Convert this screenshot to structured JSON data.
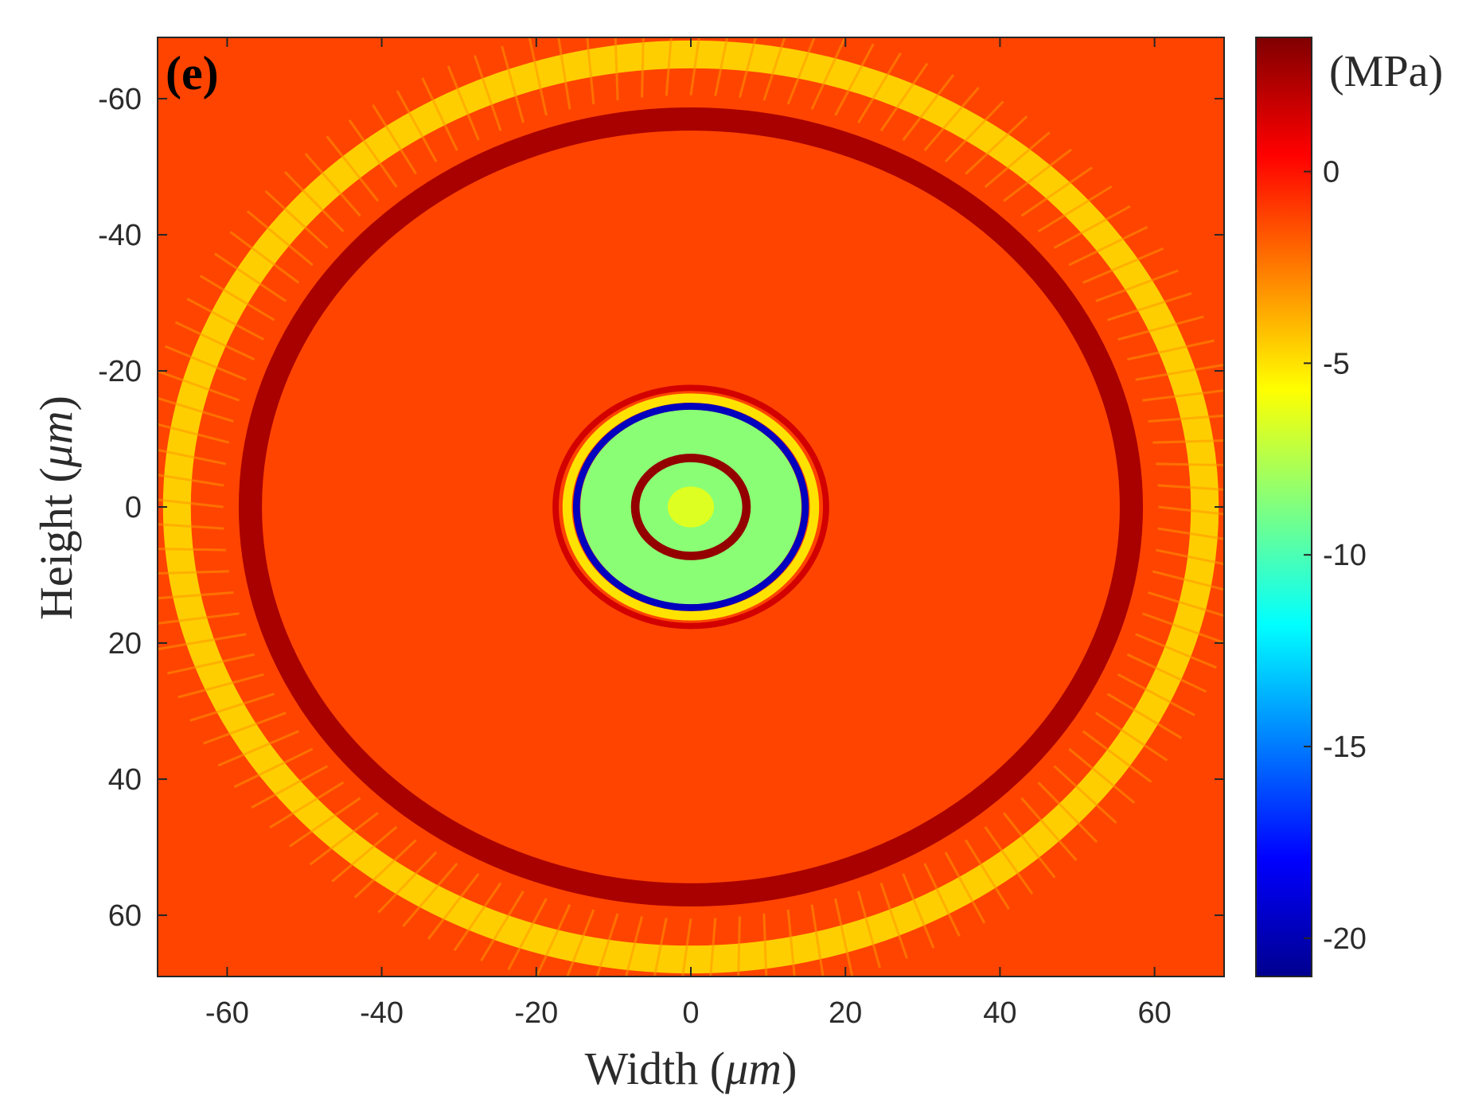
{
  "chart_data": {
    "type": "heatmap",
    "panel_label": "(e)",
    "xlabel_text": "Width (",
    "xlabel_unit": "μm",
    "xlabel_close": ")",
    "ylabel_text": "Height (",
    "ylabel_unit": "μm",
    "ylabel_close": ")",
    "xlim": [
      -69,
      69
    ],
    "ylim": [
      -69,
      69
    ],
    "y_inverted": true,
    "x_ticks": [
      -60,
      -40,
      -20,
      0,
      20,
      40,
      60
    ],
    "y_ticks": [
      -60,
      -40,
      -20,
      0,
      20,
      40,
      60
    ],
    "colorbar": {
      "label": "(MPa)",
      "range": [
        -21,
        3.5
      ],
      "ticks": [
        0,
        -5,
        -10,
        -15,
        -20
      ],
      "colormap": "jet"
    },
    "field": {
      "description_units": "MPa",
      "background": -1.2,
      "rings": [
        {
          "radius": 66.5,
          "width": 3.6,
          "value": -4.5
        },
        {
          "radius": 57,
          "width": 3.0,
          "value": 2.5
        },
        {
          "radius": 17.5,
          "width": 0.8,
          "value": 1.5
        },
        {
          "radius": 16,
          "width": 1.2,
          "value": -5.0
        },
        {
          "radius": 14.8,
          "width": 0.9,
          "value": -19.5
        },
        {
          "radius": 7.2,
          "width": 1.1,
          "value": 3.0
        }
      ],
      "inner_disk": {
        "radius": 14.3,
        "value": -8.5
      },
      "core": {
        "radius": 3.0,
        "value": -6.5
      }
    }
  }
}
